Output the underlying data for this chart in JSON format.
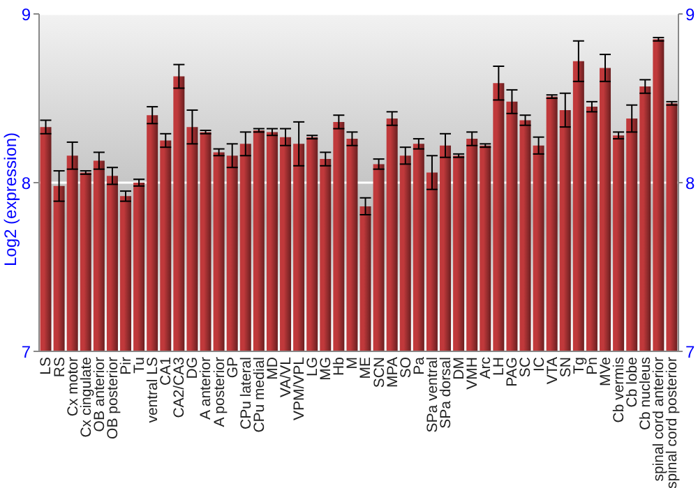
{
  "chart_data": {
    "type": "bar",
    "ylabel": "Log2 (expression)",
    "categories": [
      "LS",
      "RS",
      "Cx motor",
      "Cx cingulate",
      "OB anterior",
      "OB posterior",
      "Pir",
      "Tu",
      "ventral LS",
      "CA1",
      "CA2/CA3",
      "DG",
      "A anterior",
      "A posterior",
      "GP",
      "CPu lateral",
      "CPu medial",
      "MD",
      "VA/VL",
      "VPM/VPL",
      "LG",
      "MG",
      "Hb",
      "M",
      "ME",
      "SCN",
      "MPA",
      "SO",
      "Pa",
      "SPa ventral",
      "SPa dorsal",
      "DM",
      "VMH",
      "Arc",
      "LH",
      "PAG",
      "SC",
      "IC",
      "VTA",
      "SN",
      "Tg",
      "Pn",
      "MVe",
      "Cb vermis",
      "Cb lobe",
      "Cb nucleus",
      "spinal cord anterior",
      "spinal cord posterior"
    ],
    "values": [
      8.33,
      7.98,
      8.16,
      8.06,
      8.13,
      8.04,
      7.92,
      8.0,
      8.4,
      8.25,
      8.63,
      8.33,
      8.3,
      8.18,
      8.16,
      8.23,
      8.31,
      8.3,
      8.27,
      8.23,
      8.27,
      8.14,
      8.36,
      8.26,
      7.86,
      8.11,
      8.38,
      8.16,
      8.23,
      8.06,
      8.22,
      8.16,
      8.26,
      8.22,
      8.59,
      8.48,
      8.37,
      8.22,
      8.51,
      8.43,
      8.72,
      8.45,
      8.68,
      8.28,
      8.38,
      8.57,
      8.85,
      8.47
    ],
    "errors": [
      0.04,
      0.09,
      0.08,
      0.01,
      0.05,
      0.05,
      0.03,
      0.02,
      0.05,
      0.04,
      0.07,
      0.1,
      0.01,
      0.02,
      0.07,
      0.07,
      0.01,
      0.02,
      0.05,
      0.13,
      0.01,
      0.04,
      0.04,
      0.04,
      0.05,
      0.03,
      0.04,
      0.05,
      0.03,
      0.1,
      0.07,
      0.01,
      0.04,
      0.01,
      0.1,
      0.07,
      0.03,
      0.05,
      0.01,
      0.1,
      0.12,
      0.03,
      0.08,
      0.02,
      0.08,
      0.04,
      0.01,
      0.01
    ],
    "color": "#c0393b",
    "ylim": [
      7,
      9
    ],
    "yticks": [
      7,
      8,
      9
    ],
    "y2lim": [
      7,
      9
    ],
    "y2ticks": [
      7,
      8,
      9
    ],
    "grid": "y"
  }
}
